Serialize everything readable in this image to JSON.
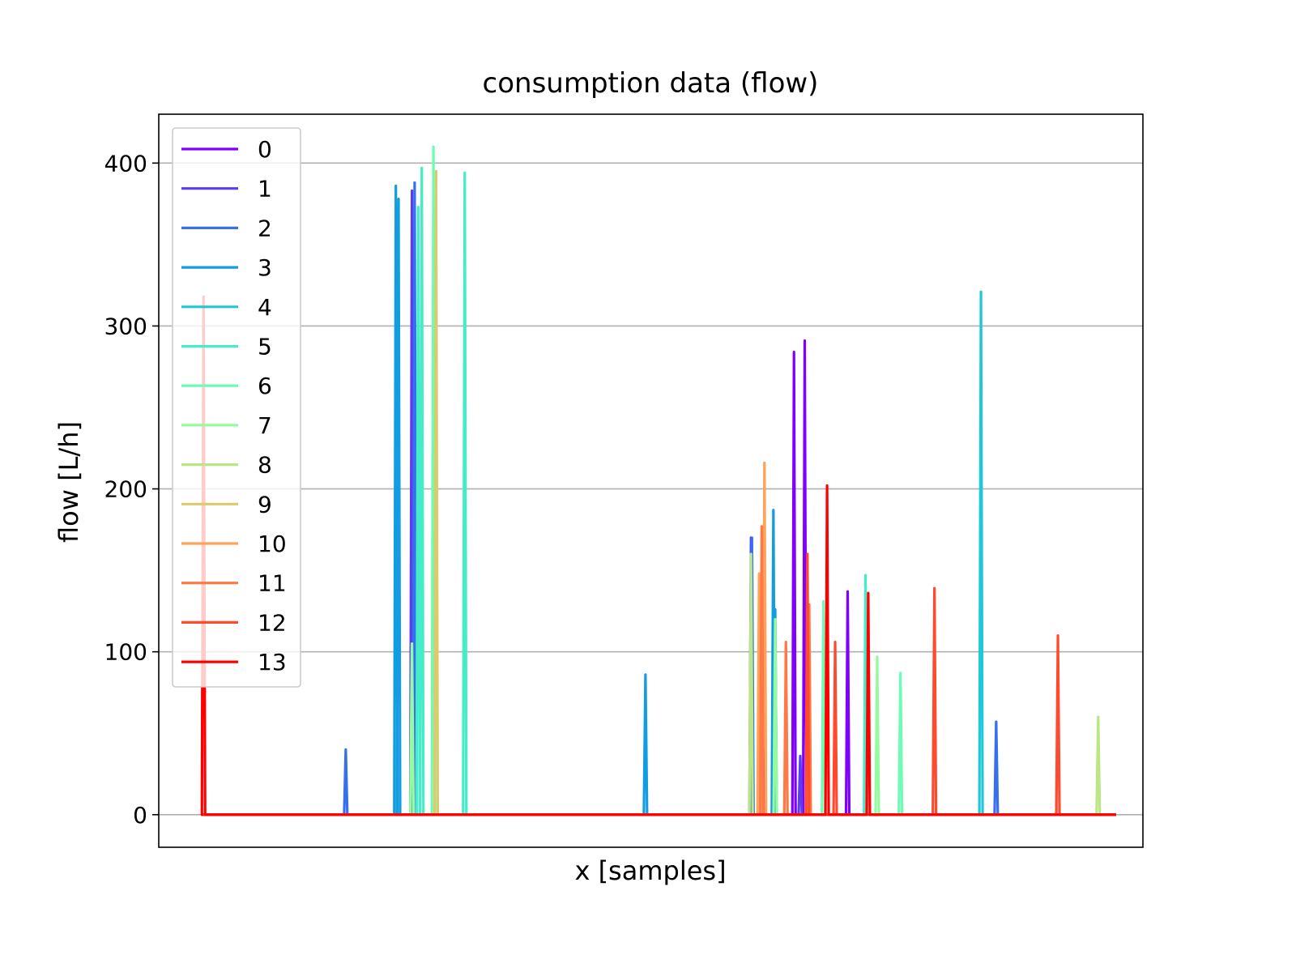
{
  "chart_data": {
    "type": "line",
    "title": "consumption data (flow)",
    "xlabel": "x [samples]",
    "ylabel": "flow [L/h]",
    "x_ticks_shown": false,
    "xlim": [
      -0.05,
      1.05
    ],
    "ylim": [
      -20,
      430
    ],
    "yticks": [
      0,
      100,
      200,
      300,
      400
    ],
    "grid": "horizontal",
    "legend_position": "top-left",
    "series": [
      {
        "name": "0",
        "color": "#8000ff",
        "spikes": [
          [
            0.66,
            284
          ],
          [
            0.672,
            291
          ],
          [
            0.72,
            137
          ],
          [
            0.626,
            137
          ]
        ]
      },
      {
        "name": "1",
        "color": "#5a3cf5",
        "spikes": [
          [
            0.233,
            383
          ],
          [
            0.612,
            170
          ],
          [
            0.667,
            36
          ]
        ]
      },
      {
        "name": "2",
        "color": "#3670ed",
        "spikes": [
          [
            0.159,
            40
          ],
          [
            0.236,
            388
          ],
          [
            0.613,
            170
          ],
          [
            0.886,
            57
          ]
        ]
      },
      {
        "name": "3",
        "color": "#129de2",
        "spikes": [
          [
            0.215,
            386
          ],
          [
            0.218,
            378
          ],
          [
            0.494,
            86
          ],
          [
            0.637,
            187
          ],
          [
            0.639,
            126
          ]
        ]
      },
      {
        "name": "4",
        "color": "#1fc8d6",
        "spikes": [
          [
            0.869,
            321
          ]
        ]
      },
      {
        "name": "5",
        "color": "#44ecc8",
        "spikes": [
          [
            0.24,
            373
          ],
          [
            0.244,
            397
          ],
          [
            0.292,
            394
          ],
          [
            0.74,
            147
          ]
        ]
      },
      {
        "name": "6",
        "color": "#6cfcb4",
        "spikes": [
          [
            0.257,
            410
          ],
          [
            0.693,
            131
          ],
          [
            0.779,
            87
          ]
        ]
      },
      {
        "name": "7",
        "color": "#94fc9f",
        "spikes": [
          [
            0.233,
            105
          ],
          [
            0.639,
            120
          ],
          [
            0.753,
            97
          ]
        ]
      },
      {
        "name": "8",
        "color": "#bae783",
        "spikes": [
          [
            0.612,
            160
          ],
          [
            1.0,
            60
          ]
        ]
      },
      {
        "name": "9",
        "color": "#dcca6b",
        "spikes": [
          [
            0.26,
            395
          ]
        ]
      },
      {
        "name": "10",
        "color": "#fea45a",
        "spikes": [
          [
            0.627,
            216
          ],
          [
            0.621,
            148
          ]
        ]
      },
      {
        "name": "11",
        "color": "#ff7845",
        "spikes": [
          [
            0.624,
            177
          ],
          [
            0.651,
            106
          ],
          [
            0.677,
            129
          ]
        ]
      },
      {
        "name": "12",
        "color": "#ff4a2e",
        "spikes": [
          [
            0.675,
            160
          ],
          [
            0.706,
            106
          ],
          [
            0.817,
            139
          ],
          [
            0.955,
            110
          ]
        ]
      },
      {
        "name": "13",
        "color": "#ff0000",
        "spikes": [
          [
            0.0,
            318
          ],
          [
            0.697,
            202
          ],
          [
            0.743,
            136
          ]
        ]
      }
    ]
  }
}
